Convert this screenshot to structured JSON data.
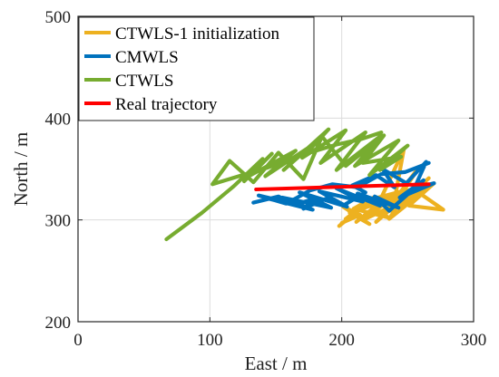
{
  "chart_data": {
    "type": "line",
    "title": "",
    "xlabel": "East / m",
    "ylabel": "North / m",
    "xlim": [
      0,
      300
    ],
    "ylim": [
      200,
      500
    ],
    "xticks": [
      0,
      100,
      200,
      300
    ],
    "yticks": [
      200,
      300,
      400,
      500
    ],
    "grid": true,
    "legend_position": "top-left",
    "series": [
      {
        "name": "CTWLS-1 initialization",
        "color": "#EDB120",
        "x": [
          198,
          212,
          203,
          224,
          209,
          236,
          216,
          248,
          228,
          241,
          222,
          252,
          233,
          258,
          239,
          247,
          230,
          262,
          244,
          270,
          251,
          277,
          256,
          266,
          247,
          258,
          236,
          249,
          226,
          242,
          218,
          235,
          211,
          229,
          206,
          221,
          201,
          214,
          200
        ],
        "y": [
          294,
          309,
          301,
          322,
          311,
          302,
          318,
          329,
          312,
          326,
          305,
          318,
          307,
          351,
          312,
          369,
          322,
          333,
          316,
          336,
          314,
          310,
          329,
          341,
          318,
          324,
          301,
          328,
          298,
          316,
          301,
          323,
          298,
          317,
          307,
          296,
          313,
          305,
          297
        ]
      },
      {
        "name": "CMWLS",
        "color": "#0072BD",
        "x": [
          133,
          152,
          164,
          180,
          171,
          190,
          201,
          218,
          208,
          226,
          240,
          231,
          249,
          264,
          255,
          270,
          244,
          262,
          236,
          225,
          243,
          212,
          229,
          196,
          216,
          183,
          204,
          168,
          192,
          155,
          178,
          141,
          163,
          137,
          158,
          176,
          193,
          212,
          230,
          248,
          266
        ],
        "y": [
          317,
          323,
          315,
          321,
          311,
          322,
          314,
          327,
          334,
          344,
          332,
          350,
          336,
          357,
          331,
          336,
          322,
          339,
          309,
          323,
          312,
          326,
          314,
          331,
          318,
          328,
          313,
          327,
          312,
          322,
          310,
          322,
          316,
          324,
          316,
          329,
          335,
          332,
          345,
          347,
          356
        ]
      },
      {
        "name": "CTWLS",
        "color": "#77AC30",
        "x": [
          67,
          94,
          118,
          140,
          126,
          147,
          131,
          165,
          142,
          176,
          156,
          190,
          170,
          203,
          184,
          218,
          196,
          230,
          210,
          243,
          221,
          250,
          229,
          245,
          216,
          232,
          203,
          185,
          171,
          152,
          133,
          115,
          102,
          122,
          143,
          160,
          178,
          196,
          214,
          230
        ],
        "y": [
          281,
          307,
          333,
          360,
          338,
          365,
          344,
          368,
          343,
          372,
          349,
          389,
          361,
          388,
          356,
          386,
          349,
          383,
          353,
          378,
          344,
          373,
          349,
          362,
          356,
          383,
          353,
          382,
          340,
          366,
          337,
          358,
          335,
          343,
          351,
          359,
          367,
          374,
          379,
          386
        ]
      },
      {
        "name": "Real trajectory",
        "color": "#FF0000",
        "x": [
          135,
          266
        ],
        "y": [
          330,
          335
        ]
      }
    ]
  }
}
